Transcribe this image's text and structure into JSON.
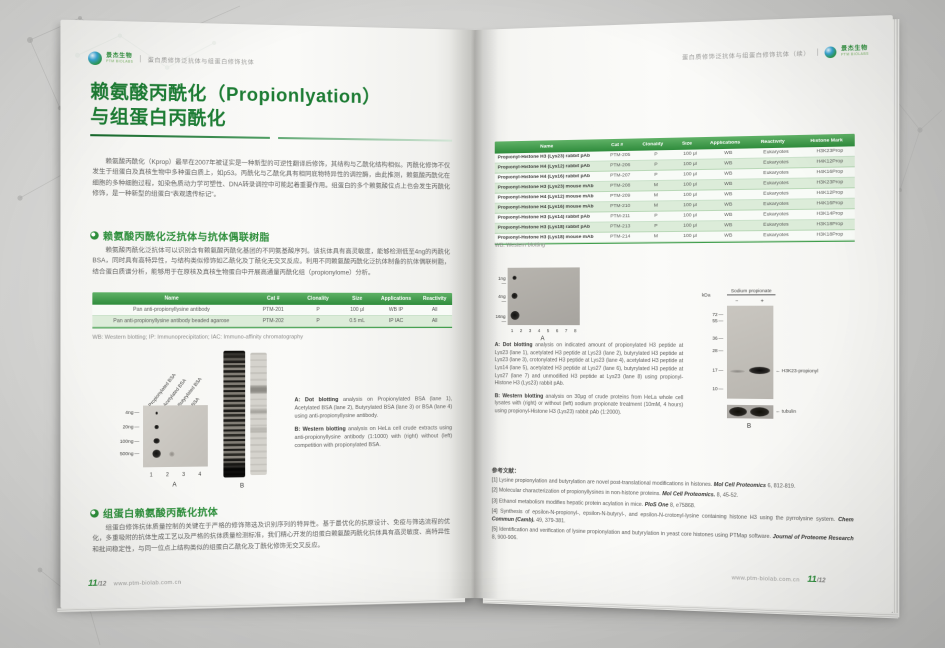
{
  "brand": {
    "name": "景杰生物",
    "sub": "PTM BIOLABS",
    "site": "www.ptm-biolab.com.cn",
    "page": {
      "current": "11",
      "rest": "/12"
    },
    "accent_green": "#2e8f3c",
    "table_header_green": "#3f9d4b",
    "table_alt_row_green": "#dcecd9"
  },
  "left": {
    "header_text": "蛋白质修饰泛抗体与组蛋白修饰抗体",
    "title1": "赖氨酸丙酰化（Propionlyation）",
    "title2": "与组蛋白丙酰化",
    "intro": "赖氨酸丙酰化（Kprop）最早在2007年被证实是一种新型的可逆性翻译后修饰，其结构与乙酰化结构相似。丙酰化修饰不仅发生于组蛋白及真核生物中多种蛋白质上，如p53。丙酰化与乙酰化具有相同底物特异性的调控酶，由此推测，赖氨酸丙酰化在细胞的多种细胞过程，如染色质动力学可塑性、DNA转录调控中可能起着重要作用。组蛋白的多个赖氨酸位点上也会发生丙酰化修饰，是一种新型的组蛋白“表观遗传标记”。",
    "sec1": {
      "heading": "赖氨酸丙酰化泛抗体与抗体偶联树脂",
      "body": "赖氨酸丙酰化泛抗体可以识别含有赖氨酸丙酰化基团的不同氨基酸序列。该抗体具有高灵敏度，能够检测低至4ng的丙酰化BSA，同时具有高特异性，与结构类似修饰如乙酰化及丁酰化无交叉反应。利用不同赖氨酸丙酰化泛抗体制备的抗体偶联树脂，结合蛋白质谱分析，能够用于在原核及真核生物蛋白中开展高通量丙酰化组（propionylome）分析。",
      "table": {
        "headers": [
          "Name",
          "Cat #",
          "Clonality",
          "Size",
          "Applications",
          "Reactivity"
        ],
        "rows": [
          [
            "Pan anti-propionyllysine antibody",
            "PTM-201",
            "P",
            "100 μl",
            "WB IP",
            "All"
          ],
          [
            "Pan anti-propionyllysine antibody beaded agarose",
            "PTM-202",
            "P",
            "0.5 mL",
            "IP IAC",
            "All"
          ]
        ]
      },
      "note": "WB: Western blotting; IP: Immunoprecipitation; IAC: Immuno-affinity chromatography"
    },
    "fig": {
      "col_labels": [
        "Propionylated BSA",
        "Acetylated BSA",
        "Butyrylated BSA",
        "BSA"
      ],
      "row_labels": [
        "4ng",
        "20ng",
        "100ng",
        "500ng"
      ],
      "lanes": [
        "1",
        "2",
        "3",
        "4"
      ],
      "panel_a": "A",
      "panel_b": "B",
      "cap_a_label": "A: Dot blotting",
      "cap_a": " analysis on Propionylated BSA (lane 1), Acetylated BSA (lane 2), Butyrylated BSA (lane 3) or BSA (lane 4) using anti-propionyllysine antibody.",
      "cap_b_label": "B: Western blotting",
      "cap_b": " analysis on HeLa cell crude extracts using anti-propionyllysine antibody (1:1000) with (right) without (left) competition with propionylated BSA."
    },
    "sec2": {
      "heading": "组蛋白赖氨酸丙酰化抗体",
      "body": "组蛋白修饰抗体质量控制的关键在于严格的修饰筛选及识别序列的特异性。基于最优化的抗原设计、免疫与筛选流程的优化，多重吸附的抗体生成工艺以及严格的抗体质量检测标准，我们精心开发的组蛋白赖氨酸丙酰化抗体具有高灵敏度、高特异性和批间稳定性，与同一位点上结构类似的组蛋白乙酰化及丁酰化修饰无交叉反应。"
    }
  },
  "right": {
    "header_text": "蛋白质修饰泛抗体与组蛋白修饰抗体（续）",
    "table": {
      "headers": [
        "Name",
        "Cat #",
        "Clonality",
        "Size",
        "Applications",
        "Reactivity",
        "Histone Mark"
      ],
      "rows": [
        [
          "Propionyl-Histone H3 (Lys23) rabbit pAb",
          "PTM-205",
          "P",
          "100 μl",
          "WB",
          "Eukaryotes",
          "H3K23Prop"
        ],
        [
          "Propionyl-Histone H4 (Lys12) rabbit pAb",
          "PTM-206",
          "P",
          "100 μl",
          "WB",
          "Eukaryotes",
          "H4K12Prop"
        ],
        [
          "Propionyl-Histone H4 (Lys16) rabbit pAb",
          "PTM-207",
          "P",
          "100 μl",
          "WB",
          "Eukaryotes",
          "H4K16Prop"
        ],
        [
          "Propionyl-Histone H3 (Lys23) mouse mAb",
          "PTM-208",
          "M",
          "100 μl",
          "WB",
          "Eukaryotes",
          "H3K23Prop"
        ],
        [
          "Propionyl-Histone H4 (Lys12) mouse mAb",
          "PTM-209",
          "M",
          "100 μl",
          "WB",
          "Eukaryotes",
          "H4K12Prop"
        ],
        [
          "Propionyl-Histone H4 (Lys16) mouse mAb",
          "PTM-210",
          "M",
          "100 μl",
          "WB",
          "Eukaryotes",
          "H4K16Prop"
        ],
        [
          "Propionyl-Histone H3 (Lys14) rabbit pAb",
          "PTM-211",
          "P",
          "100 μl",
          "WB",
          "Eukaryotes",
          "H3K14Prop"
        ],
        [
          "Propionyl-Histone H3 (Lys18) rabbit pAb",
          "PTM-213",
          "P",
          "100 μl",
          "WB",
          "Eukaryotes",
          "H3K18Prop"
        ],
        [
          "Propionyl-Histone H3 (Lys18) mouse mAb",
          "PTM-214",
          "M",
          "100 μl",
          "WB",
          "Eukaryotes",
          "H3K18Prop"
        ]
      ]
    },
    "note": "WB: Western blotting",
    "fig": {
      "row_labels": [
        "1ng",
        "4ng",
        "16ng"
      ],
      "lanes": [
        "1",
        "2",
        "3",
        "4",
        "5",
        "6",
        "7",
        "8"
      ],
      "panel_a": "A",
      "cap_a_label": "A: Dot blotting",
      "cap_a": " analysis on indicated amount of propionylated H3 peptide at Lys23 (lane 1), acetylated H3 peptide at Lys23 (lane 2), butyrylated H3 peptide at Lys23 (lane 3), crotonylated H3 peptide at Lys23 (lane 4), acetylated H3 peptide at Lys14 (lane 5), acetylated H3 peptide at Lys27 (lane 6), butyrylated H3 peptide at Lys27 (lane 7) and unmodified H3 peptide at Lys23 (lane 8) using propionyl-Histone H3 (Lys23) rabbit pAb.",
      "cap_b_label": "B: Western blotting",
      "cap_b": " analysis on 30μg of crude proteins from HeLa whole cell lysates with (right) or without (left) sodium propionate treatment (10mM, 4 hours) using propionyl-Histone H3 (Lys23) rabbit pAb (1:2000).",
      "wb": {
        "kda": "kDa",
        "ladder": [
          "72",
          "55",
          "36",
          "28",
          "17",
          "10"
        ],
        "treatment": "Sodium propionate",
        "minus": "−",
        "plus": "+",
        "band": "H3K23-propionyl",
        "tubulin": "tubulin",
        "panel_b": "B"
      }
    },
    "refs": {
      "heading": "参考文献：",
      "items": [
        {
          "num": "[1]",
          "text": "Lysine propionylation and butyrylation are novel post-translational modifications in histones. ",
          "journal": "Mol Cell Proteomics",
          "tail": " 6, 812-819."
        },
        {
          "num": "[2]",
          "text": "Molecular characterization of propionyllysines in non-histone proteins. ",
          "journal": "Mol Cell Proteomics.",
          "tail": " 8, 45-52."
        },
        {
          "num": "[3]",
          "text": "Ethanol metabolism modifies hepatic protein acylation in mice. ",
          "journal": "PloS One",
          "tail": " 8, e75868."
        },
        {
          "num": "[4]",
          "text": "Synthesis of epsilon-N-propionyl-, epsilon-N-butyryl-, and epsilon-N-crotonyl-lysine containing histone H3 using the pyrrolysine system. ",
          "journal": "Chem Commun (Camb).",
          "tail": " 49, 379-381."
        },
        {
          "num": "[5]",
          "text": "Identification and verification of lysine propionylation and butyrylation in yeast core histones using PTMap software. ",
          "journal": "Journal of Proteome Research",
          "tail": " 8, 900-906."
        }
      ]
    }
  }
}
